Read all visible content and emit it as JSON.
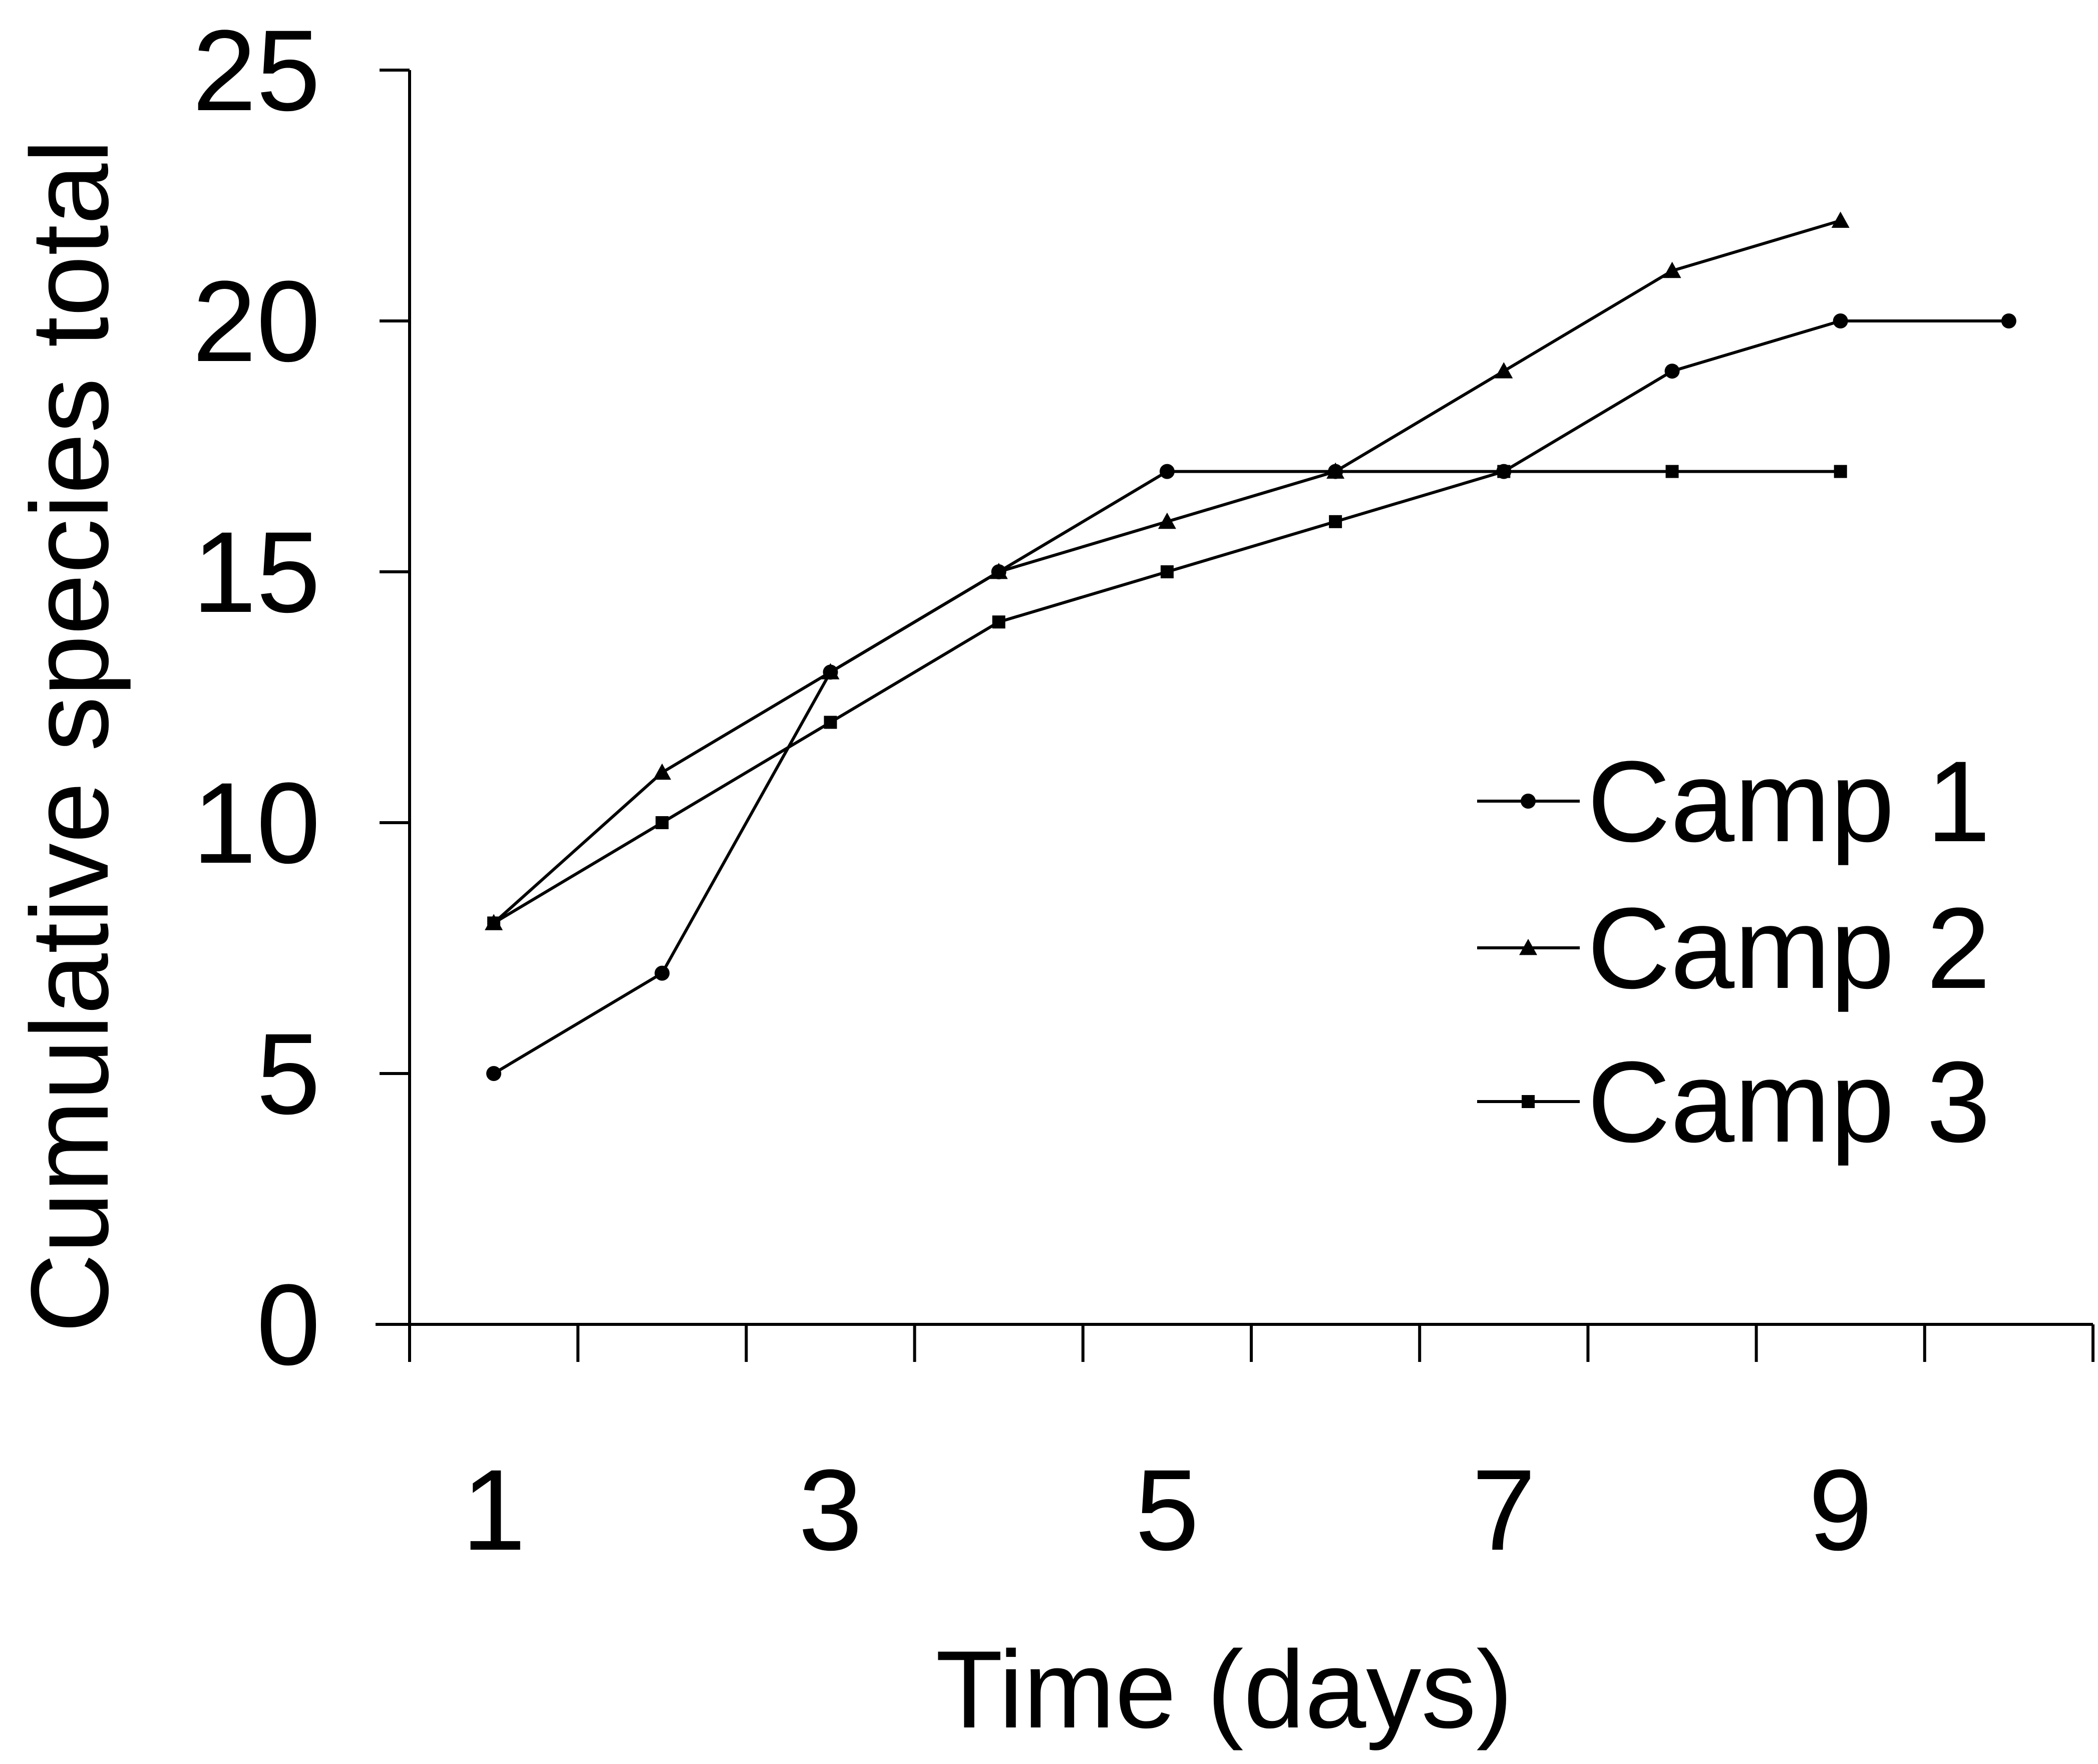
{
  "chart_data": {
    "type": "line",
    "xlabel": "Time (days)",
    "ylabel": "Cumulative species total",
    "xlim": [
      0.5,
      10.5
    ],
    "ylim": [
      0,
      25
    ],
    "x_ticks": [
      1,
      2,
      3,
      4,
      5,
      6,
      7,
      8,
      9,
      10
    ],
    "x_tick_labels": [
      "1",
      "3",
      "5",
      "7",
      "9"
    ],
    "x_tick_label_values": [
      1,
      3,
      5,
      7,
      9
    ],
    "y_ticks": [
      0,
      5,
      10,
      15,
      20,
      25
    ],
    "y_tick_labels": [
      "0",
      "5",
      "10",
      "15",
      "20",
      "25"
    ],
    "grid": false,
    "legend_position": "right",
    "series": [
      {
        "name": "Camp 1",
        "marker": "circle",
        "x": [
          1,
          2,
          3,
          4,
          5,
          6,
          7,
          8,
          9,
          10
        ],
        "values": [
          5,
          7,
          13,
          15,
          17,
          17,
          17,
          19,
          20,
          20
        ]
      },
      {
        "name": "Camp 2",
        "marker": "triangle",
        "x": [
          1,
          2,
          3,
          4,
          5,
          6,
          7,
          8,
          9
        ],
        "values": [
          8,
          11,
          13,
          15,
          16,
          17,
          19,
          21,
          22
        ]
      },
      {
        "name": "Camp 3",
        "marker": "square",
        "x": [
          1,
          2,
          3,
          4,
          5,
          6,
          7,
          8,
          9
        ],
        "values": [
          8,
          10,
          12,
          14,
          15,
          16,
          17,
          17,
          17
        ]
      }
    ]
  }
}
